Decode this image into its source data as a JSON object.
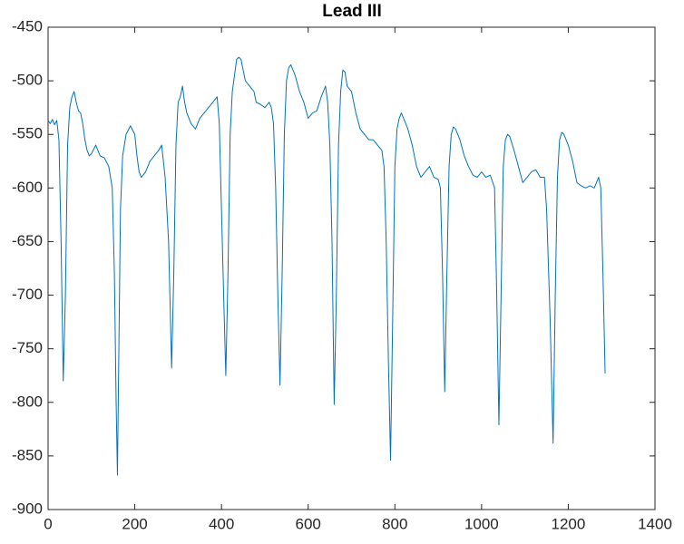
{
  "chart_data": {
    "type": "line",
    "title": "Lead III",
    "x": [
      0,
      5,
      10,
      15,
      20,
      25,
      30,
      35,
      40,
      45,
      50,
      55,
      60,
      65,
      70,
      75,
      80,
      85,
      90,
      95,
      100,
      110,
      120,
      130,
      140,
      148,
      153,
      157,
      160,
      163,
      167,
      172,
      180,
      190,
      200,
      205,
      210,
      215,
      225,
      235,
      245,
      255,
      262,
      270,
      278,
      285,
      290,
      295,
      300,
      305,
      310,
      315,
      320,
      330,
      340,
      350,
      360,
      370,
      380,
      390,
      395,
      400,
      405,
      410,
      415,
      420,
      425,
      430,
      435,
      440,
      445,
      455,
      465,
      475,
      480,
      490,
      500,
      510,
      515,
      520,
      525,
      530,
      535,
      540,
      545,
      550,
      555,
      560,
      570,
      580,
      590,
      600,
      610,
      620,
      630,
      640,
      645,
      650,
      655,
      660,
      665,
      670,
      675,
      680,
      685,
      690,
      700,
      710,
      720,
      730,
      740,
      750,
      760,
      770,
      775,
      780,
      785,
      790,
      795,
      800,
      805,
      810,
      815,
      820,
      830,
      840,
      850,
      860,
      870,
      880,
      890,
      900,
      905,
      910,
      915,
      920,
      925,
      930,
      935,
      940,
      950,
      960,
      970,
      980,
      990,
      1000,
      1010,
      1020,
      1030,
      1035,
      1040,
      1045,
      1050,
      1055,
      1060,
      1065,
      1075,
      1085,
      1095,
      1105,
      1115,
      1125,
      1135,
      1145,
      1150,
      1158,
      1165,
      1170,
      1175,
      1180,
      1185,
      1190,
      1200,
      1210,
      1220,
      1230,
      1240,
      1250,
      1260,
      1270,
      1275,
      1280,
      1285
    ],
    "series": [
      {
        "color": "#0072BD",
        "values": [
          -537,
          -540,
          -536,
          -541,
          -537,
          -555,
          -650,
          -780,
          -700,
          -560,
          -525,
          -515,
          -510,
          -520,
          -528,
          -530,
          -540,
          -555,
          -565,
          -570,
          -568,
          -560,
          -570,
          -572,
          -580,
          -600,
          -680,
          -800,
          -868,
          -760,
          -620,
          -570,
          -550,
          -542,
          -550,
          -570,
          -585,
          -590,
          -585,
          -575,
          -570,
          -565,
          -560,
          -590,
          -650,
          -768,
          -680,
          -560,
          -520,
          -515,
          -505,
          -520,
          -530,
          -540,
          -545,
          -535,
          -530,
          -525,
          -520,
          -515,
          -540,
          -620,
          -700,
          -775,
          -680,
          -550,
          -510,
          -495,
          -480,
          -478,
          -480,
          -500,
          -505,
          -510,
          -520,
          -522,
          -525,
          -520,
          -525,
          -540,
          -600,
          -700,
          -784,
          -680,
          -550,
          -500,
          -488,
          -485,
          -495,
          -510,
          -520,
          -535,
          -530,
          -528,
          -515,
          -505,
          -520,
          -560,
          -650,
          -802,
          -700,
          -560,
          -510,
          -490,
          -492,
          -505,
          -510,
          -530,
          -545,
          -550,
          -555,
          -555,
          -560,
          -565,
          -580,
          -650,
          -760,
          -854,
          -720,
          -580,
          -545,
          -535,
          -530,
          -535,
          -545,
          -560,
          -580,
          -590,
          -585,
          -580,
          -590,
          -592,
          -600,
          -680,
          -790,
          -680,
          -580,
          -550,
          -543,
          -545,
          -555,
          -570,
          -580,
          -588,
          -590,
          -585,
          -590,
          -588,
          -600,
          -700,
          -821,
          -700,
          -580,
          -555,
          -550,
          -552,
          -565,
          -580,
          -595,
          -590,
          -585,
          -583,
          -590,
          -590,
          -620,
          -720,
          -838,
          -700,
          -590,
          -555,
          -548,
          -550,
          -560,
          -575,
          -595,
          -598,
          -600,
          -598,
          -600,
          -590,
          -600,
          -680,
          -773
        ]
      }
    ],
    "xlim": [
      0,
      1400
    ],
    "xticks": [
      0,
      200,
      400,
      600,
      800,
      1000,
      1200,
      1400
    ],
    "ylim": [
      -900,
      -450
    ],
    "yticks": [
      -900,
      -850,
      -800,
      -750,
      -700,
      -650,
      -600,
      -550,
      -500,
      -450
    ]
  }
}
